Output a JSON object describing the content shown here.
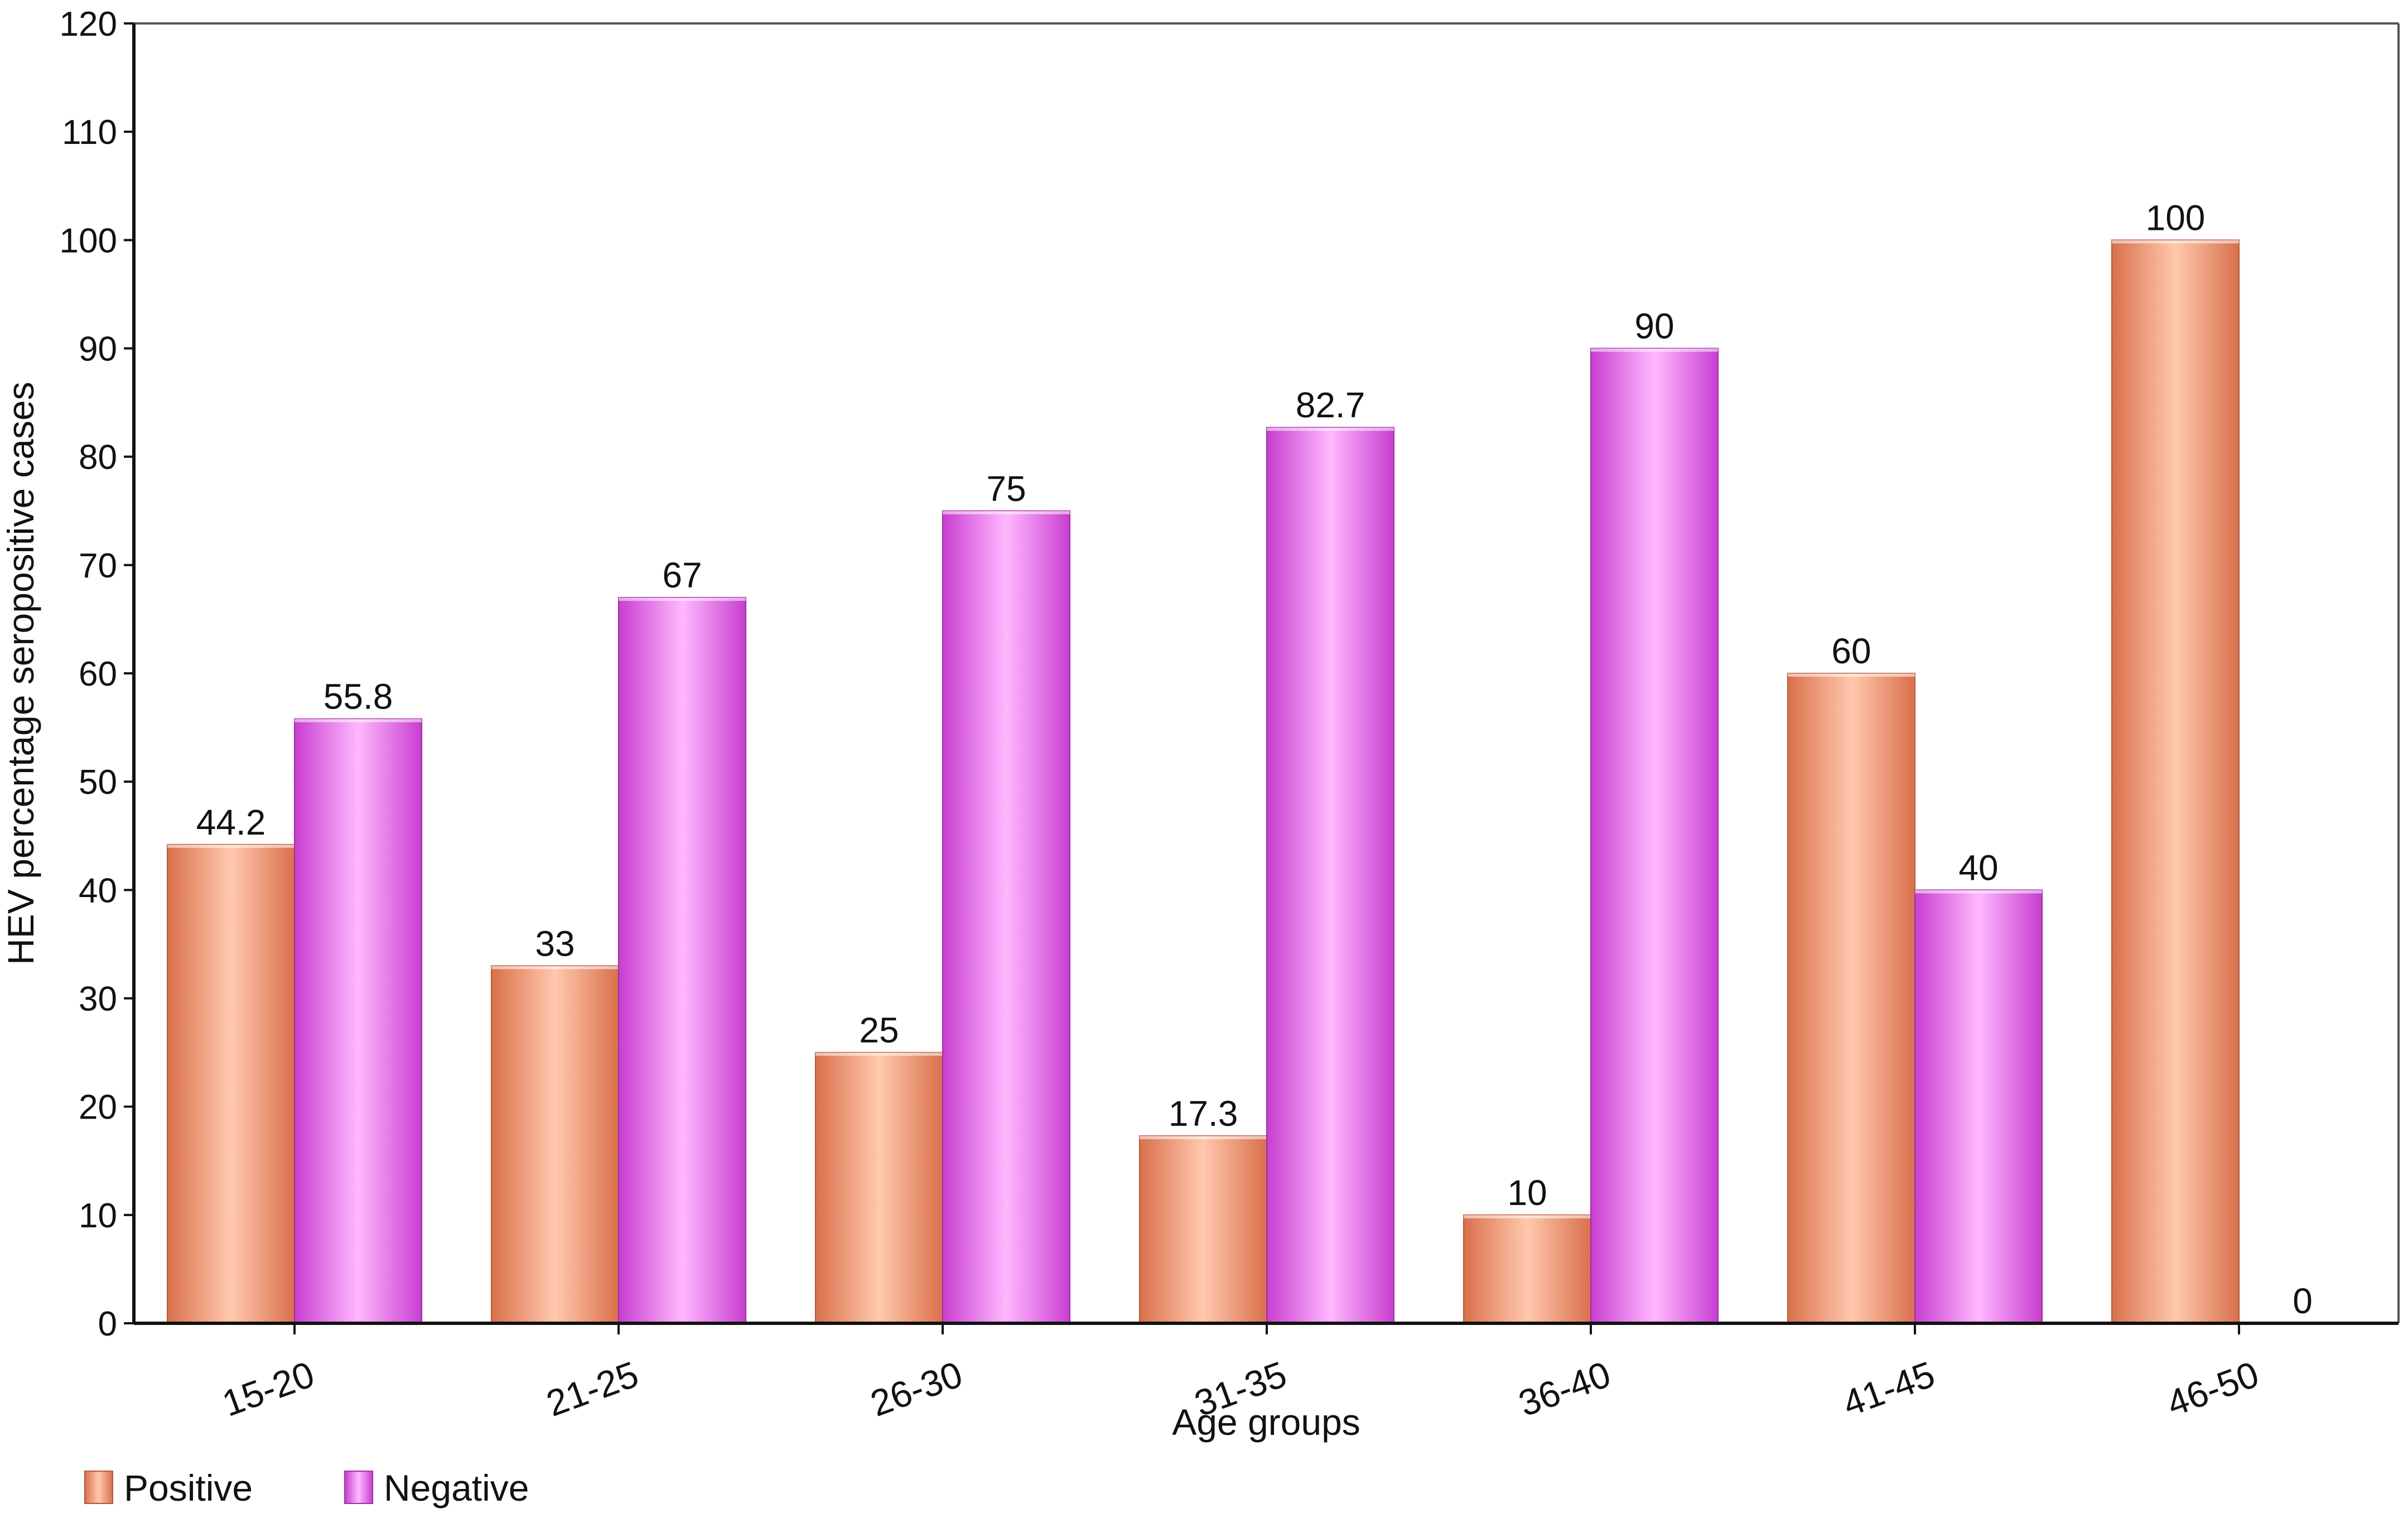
{
  "chart_data": {
    "type": "bar",
    "title": "",
    "xlabel": "Age groups",
    "ylabel": "HEV percentage seropositive cases",
    "categories": [
      "15-20",
      "21-25",
      "26-30",
      "31-35",
      "36-40",
      "41-45",
      "46-50"
    ],
    "series": [
      {
        "name": "Positive",
        "values": [
          44.2,
          33,
          25,
          17.3,
          10,
          60,
          100
        ]
      },
      {
        "name": "Negative",
        "values": [
          55.8,
          67,
          75,
          82.7,
          90,
          40,
          0
        ]
      }
    ],
    "ylim": [
      0,
      120
    ],
    "yticks": [
      0,
      10,
      20,
      30,
      40,
      50,
      60,
      70,
      80,
      90,
      100,
      110,
      120
    ],
    "grid": false,
    "legend_position": "bottom-left",
    "colors": {
      "Positive": "#f0906a",
      "Negative": "#e05ce8"
    }
  }
}
